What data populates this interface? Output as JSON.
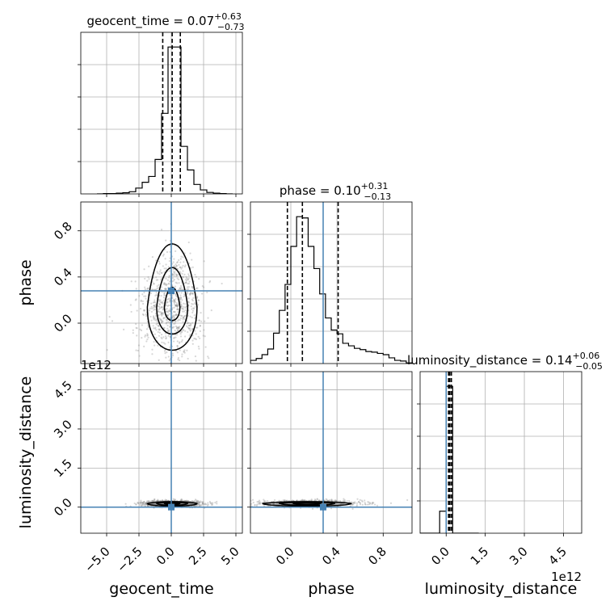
{
  "chart_data": {
    "type": "corner",
    "parameters": [
      "geocent_time",
      "phase",
      "luminosity_distance"
    ],
    "axis_labels": {
      "geocent_time": "geocent_time",
      "phase": "phase",
      "luminosity_distance": "luminosity_distance"
    },
    "titles": [
      {
        "text": "geocent_time = 0.07",
        "sup": "+0.63",
        "sub": "−0.73"
      },
      {
        "text": "phase = 0.10",
        "sup": "+0.31",
        "sub": "−0.13"
      },
      {
        "text": "luminosity_distance = 0.14",
        "sup": "+0.06",
        "sub": "−0.05"
      }
    ],
    "ranges": {
      "geocent_time": [
        -7.0,
        5.5
      ],
      "phase": [
        -0.35,
        1.05
      ],
      "luminosity_distance": [
        -1000000000000.0,
        5200000000000.0
      ]
    },
    "ticks": {
      "geocent_time": [
        -5.0,
        -2.5,
        0.0,
        2.5,
        5.0
      ],
      "phase": [
        0.0,
        0.4,
        0.8
      ],
      "luminosity_distance": [
        0.0,
        1500000000000.0,
        3000000000000.0,
        4500000000000.0
      ]
    },
    "tick_labels": {
      "geocent_time": [
        "−5.0",
        "−2.5",
        "0.0",
        "2.5",
        "5.0"
      ],
      "phase": [
        "0.0",
        "0.4",
        "0.8"
      ],
      "luminosity_distance": [
        "0.0",
        "1.5",
        "3.0",
        "4.5"
      ]
    },
    "offset_text": "1e12",
    "truths": {
      "geocent_time": 0.0,
      "phase": 0.28,
      "luminosity_distance": 0.0
    },
    "quantiles": {
      "geocent_time": [
        -0.66,
        0.07,
        0.7
      ],
      "phase": [
        -0.03,
        0.1,
        0.41
      ],
      "luminosity_distance": [
        90000000000.0,
        140000000000.0,
        200000000000.0
      ]
    },
    "histograms": {
      "geocent_time": {
        "edges": [
          -5.75,
          -5.25,
          -4.75,
          -4.25,
          -3.75,
          -3.25,
          -2.75,
          -2.25,
          -1.75,
          -1.25,
          -0.75,
          -0.25,
          0.25,
          0.75,
          1.25,
          1.75,
          2.25,
          2.75,
          3.25,
          3.75,
          4.25,
          4.75
        ],
        "counts": [
          0,
          1,
          1,
          2,
          3,
          6,
          16,
          32,
          48,
          95,
          222,
          405,
          405,
          131,
          66,
          26,
          11,
          4,
          2,
          1,
          0
        ]
      },
      "phase": {
        "edges": [
          -0.35,
          -0.3,
          -0.25,
          -0.2,
          -0.15,
          -0.1,
          -0.05,
          0.0,
          0.05,
          0.1,
          0.15,
          0.2,
          0.25,
          0.3,
          0.35,
          0.4,
          0.45,
          0.5,
          0.55,
          0.6,
          0.65,
          0.7,
          0.75,
          0.8,
          0.85,
          0.9,
          0.95,
          1.0,
          1.05
        ],
        "counts": [
          5,
          8,
          14,
          23,
          48,
          84,
          125,
          185,
          232,
          230,
          185,
          150,
          110,
          72,
          53,
          47,
          32,
          28,
          24,
          22,
          19,
          18,
          16,
          14,
          9,
          5,
          4,
          1
        ]
      },
      "luminosity_distance": {
        "edges": [
          -1000000000000.0,
          -750000000000.0,
          -500000000000.0,
          -250000000000.0,
          0.0,
          250000000000.0,
          500000000000.0,
          750000000000.0,
          1000000000000.0,
          1250000000000.0
        ],
        "counts": [
          0,
          0,
          0,
          15,
          100,
          0,
          0,
          0,
          0
        ]
      }
    },
    "scatter_stats": {
      "geocent_time": {
        "mean": 0.07,
        "std": 1.2
      },
      "phase": {
        "mean": 0.14,
        "std": 0.24
      },
      "luminosity_distance": {
        "mean": 140000000000.0,
        "std": 60000000000.0
      }
    },
    "grid": true
  }
}
